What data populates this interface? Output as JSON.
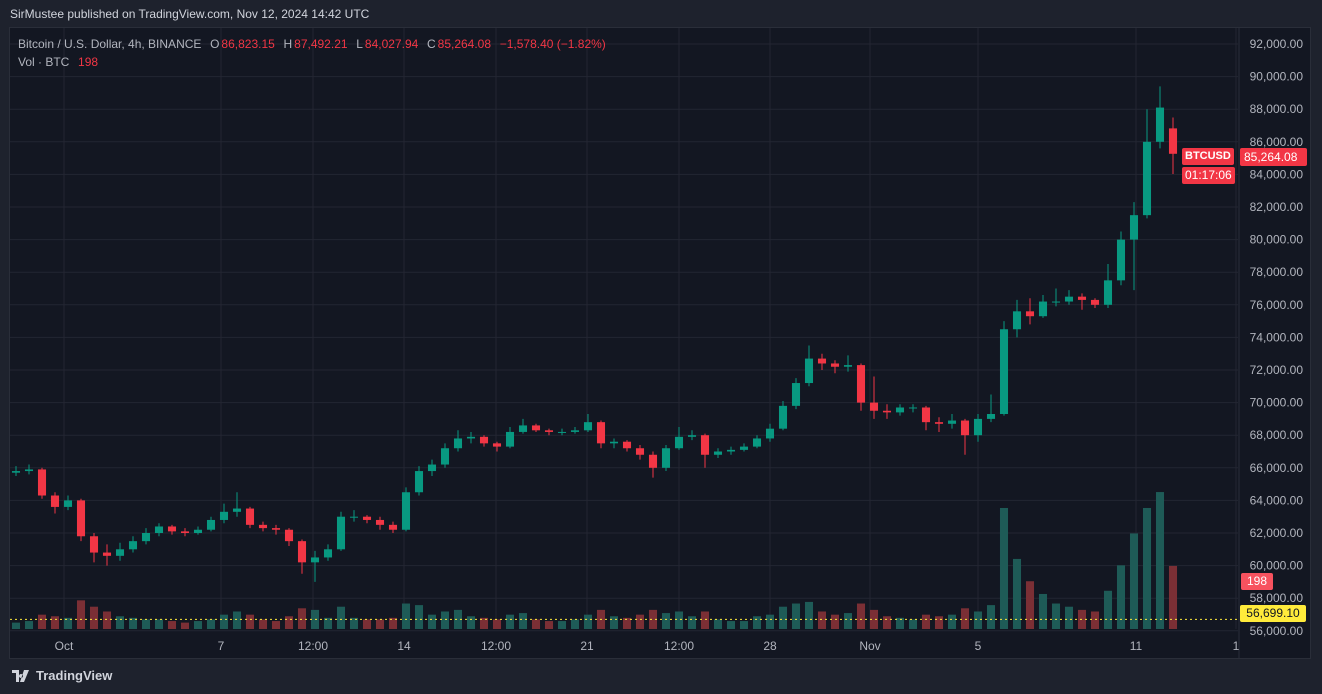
{
  "header": {
    "published": "SirMustee published on TradingView.com, Nov 12, 2024 14:42 UTC"
  },
  "legend": {
    "symbol": "Bitcoin / U.S. Dollar, 4h, BINANCE",
    "o_label": "O",
    "open": "86,823.15",
    "h_label": "H",
    "high": "87,492.21",
    "l_label": "L",
    "low": "84,027.94",
    "c_label": "C",
    "close": "85,264.08",
    "change": "−1,578.40 (−1.82%)",
    "vol_label": "Vol · BTC",
    "vol_value": "198"
  },
  "tags": {
    "symbol": "BTCUSD",
    "last_price": "85,264.08",
    "countdown": "01:17:06",
    "volume": "198",
    "line_price": "56,699.10"
  },
  "footer": {
    "brand": "TradingView"
  },
  "colors": {
    "up": "#089981",
    "down": "#f23645",
    "vol_up": "#1e5b57",
    "vol_down": "#7b2f35",
    "line": "#ffeb3b",
    "background": "#131722",
    "grid": "#232632"
  },
  "chart_data": {
    "type": "candlestick",
    "title": "Bitcoin / U.S. Dollar, 4h, BINANCE",
    "ylim": [
      55500,
      93000
    ],
    "y_ticks": [
      "92,000.00",
      "90,000.00",
      "88,000.00",
      "86,000.00",
      "84,000.00",
      "82,000.00",
      "80,000.00",
      "78,000.00",
      "76,000.00",
      "74,000.00",
      "72,000.00",
      "70,000.00",
      "68,000.00",
      "66,000.00",
      "64,000.00",
      "62,000.00",
      "60,000.00",
      "58,000.00",
      "56,000.00"
    ],
    "x_ticks": [
      "Oct",
      "7",
      "12:00",
      "14",
      "12:00",
      "21",
      "12:00",
      "28",
      "Nov",
      "5",
      "11",
      "1"
    ],
    "horizontal_line": 56699.1,
    "candles_ohlcv": [
      [
        65700,
        66100,
        65500,
        65800,
        20
      ],
      [
        65800,
        66200,
        65600,
        65900,
        25
      ],
      [
        65900,
        66000,
        64100,
        64300,
        45
      ],
      [
        64300,
        64500,
        63200,
        63600,
        40
      ],
      [
        63600,
        64300,
        63400,
        64000,
        35
      ],
      [
        64000,
        64100,
        61500,
        61800,
        90
      ],
      [
        61800,
        62000,
        60200,
        60800,
        70
      ],
      [
        60800,
        61300,
        60000,
        60600,
        55
      ],
      [
        60600,
        61400,
        60300,
        61000,
        40
      ],
      [
        61000,
        61800,
        60800,
        61500,
        35
      ],
      [
        61500,
        62300,
        61300,
        62000,
        30
      ],
      [
        62000,
        62600,
        61800,
        62400,
        30
      ],
      [
        62400,
        62500,
        61900,
        62100,
        25
      ],
      [
        62100,
        62300,
        61800,
        62000,
        20
      ],
      [
        62000,
        62400,
        61900,
        62200,
        25
      ],
      [
        62200,
        63000,
        62100,
        62800,
        30
      ],
      [
        62800,
        63800,
        62600,
        63300,
        45
      ],
      [
        63300,
        64500,
        63000,
        63500,
        55
      ],
      [
        63500,
        63600,
        62300,
        62500,
        45
      ],
      [
        62500,
        62700,
        62100,
        62300,
        30
      ],
      [
        62300,
        62500,
        61900,
        62200,
        25
      ],
      [
        62200,
        62300,
        61200,
        61500,
        40
      ],
      [
        61500,
        61600,
        59500,
        60200,
        65
      ],
      [
        60200,
        60900,
        59000,
        60500,
        60
      ],
      [
        60500,
        61300,
        60300,
        61000,
        35
      ],
      [
        61000,
        63300,
        60900,
        63000,
        70
      ],
      [
        63000,
        63400,
        62700,
        63000,
        35
      ],
      [
        63000,
        63100,
        62600,
        62800,
        30
      ],
      [
        62800,
        63000,
        62200,
        62500,
        30
      ],
      [
        62500,
        62700,
        62000,
        62200,
        35
      ],
      [
        62200,
        64800,
        62100,
        64500,
        80
      ],
      [
        64500,
        66100,
        64300,
        65800,
        75
      ],
      [
        65800,
        66500,
        65500,
        66200,
        45
      ],
      [
        66200,
        67500,
        66000,
        67200,
        55
      ],
      [
        67200,
        68300,
        67000,
        67800,
        60
      ],
      [
        67800,
        68200,
        67500,
        67900,
        40
      ],
      [
        67900,
        68000,
        67300,
        67500,
        35
      ],
      [
        67500,
        67600,
        67000,
        67300,
        30
      ],
      [
        67300,
        68500,
        67200,
        68200,
        45
      ],
      [
        68200,
        69000,
        68100,
        68600,
        50
      ],
      [
        68600,
        68700,
        68200,
        68300,
        30
      ],
      [
        68300,
        68400,
        68000,
        68200,
        25
      ],
      [
        68200,
        68400,
        68000,
        68200,
        25
      ],
      [
        68200,
        68500,
        68100,
        68300,
        30
      ],
      [
        68300,
        69300,
        68200,
        68800,
        45
      ],
      [
        68800,
        68900,
        67200,
        67500,
        60
      ],
      [
        67500,
        67800,
        67200,
        67600,
        40
      ],
      [
        67600,
        67700,
        67000,
        67200,
        35
      ],
      [
        67200,
        67400,
        66500,
        66800,
        45
      ],
      [
        66800,
        67000,
        65400,
        66000,
        60
      ],
      [
        66000,
        67400,
        65800,
        67200,
        50
      ],
      [
        67200,
        68500,
        67100,
        67900,
        55
      ],
      [
        67900,
        68300,
        67700,
        68000,
        40
      ],
      [
        68000,
        68100,
        66000,
        66800,
        55
      ],
      [
        66800,
        67200,
        66600,
        67000,
        30
      ],
      [
        67000,
        67300,
        66800,
        67100,
        25
      ],
      [
        67100,
        67500,
        67000,
        67300,
        25
      ],
      [
        67300,
        68000,
        67200,
        67800,
        40
      ],
      [
        67800,
        68700,
        67600,
        68400,
        45
      ],
      [
        68400,
        70100,
        68300,
        69800,
        70
      ],
      [
        69800,
        71500,
        69600,
        71200,
        80
      ],
      [
        71200,
        73500,
        71000,
        72700,
        85
      ],
      [
        72700,
        73000,
        72000,
        72400,
        55
      ],
      [
        72400,
        72600,
        71800,
        72200,
        45
      ],
      [
        72200,
        72900,
        71900,
        72300,
        50
      ],
      [
        72300,
        72400,
        69500,
        70000,
        80
      ],
      [
        70000,
        71600,
        69000,
        69500,
        60
      ],
      [
        69500,
        69900,
        69000,
        69400,
        40
      ],
      [
        69400,
        69900,
        69200,
        69700,
        35
      ],
      [
        69700,
        69900,
        69400,
        69700,
        30
      ],
      [
        69700,
        69800,
        68300,
        68800,
        45
      ],
      [
        68800,
        69100,
        68200,
        68700,
        40
      ],
      [
        68700,
        69300,
        68400,
        68900,
        45
      ],
      [
        68900,
        69000,
        66800,
        68000,
        65
      ],
      [
        68000,
        69300,
        67600,
        69000,
        55
      ],
      [
        69000,
        70500,
        68800,
        69300,
        75
      ],
      [
        69300,
        75000,
        69200,
        74500,
        380
      ],
      [
        74500,
        76300,
        74000,
        75600,
        220
      ],
      [
        75600,
        76400,
        74800,
        75300,
        150
      ],
      [
        75300,
        76600,
        75200,
        76200,
        110
      ],
      [
        76200,
        77000,
        75900,
        76200,
        80
      ],
      [
        76200,
        76900,
        76000,
        76500,
        70
      ],
      [
        76500,
        76700,
        75700,
        76300,
        60
      ],
      [
        76300,
        76400,
        75800,
        76000,
        55
      ],
      [
        76000,
        78500,
        75800,
        77500,
        120
      ],
      [
        77500,
        80500,
        77200,
        80000,
        200
      ],
      [
        80000,
        82300,
        76900,
        81500,
        300
      ],
      [
        81500,
        88000,
        81300,
        86000,
        380
      ],
      [
        86000,
        89400,
        85600,
        88100,
        430
      ],
      [
        86823.15,
        87492.21,
        84027.94,
        85264.08,
        198
      ]
    ]
  }
}
